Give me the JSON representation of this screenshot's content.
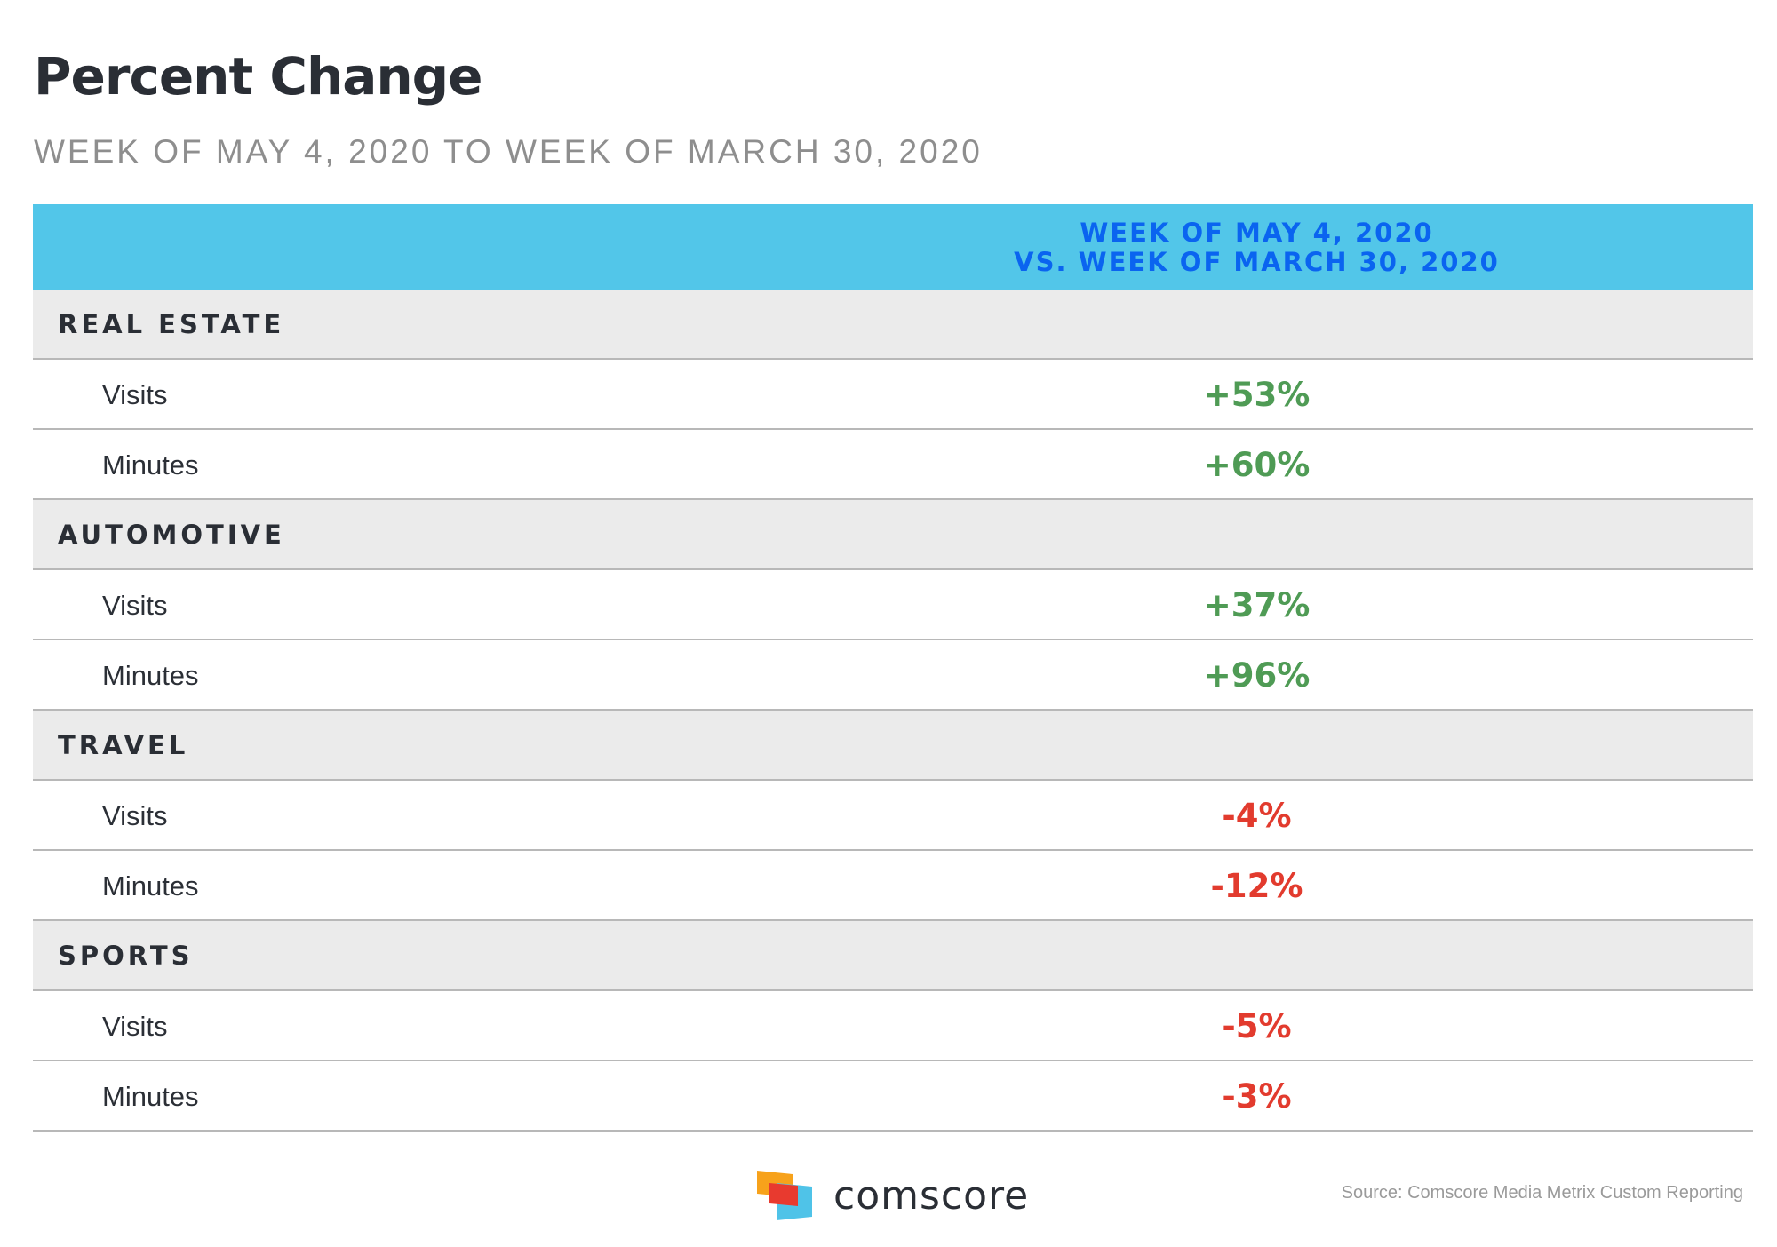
{
  "header": {
    "title": "Percent Change",
    "subtitle": "WEEK OF MAY 4, 2020 TO WEEK OF MARCH 30, 2020"
  },
  "chart_data": {
    "type": "table",
    "column_header": [
      "WEEK OF MAY 4, 2020",
      "VS. WEEK OF MARCH 30, 2020"
    ],
    "categories": [
      {
        "name": "REAL ESTATE",
        "rows": [
          {
            "label": "Visits",
            "value": "+53%"
          },
          {
            "label": "Minutes",
            "value": "+60%"
          }
        ]
      },
      {
        "name": "AUTOMOTIVE",
        "rows": [
          {
            "label": "Visits",
            "value": "+37%"
          },
          {
            "label": "Minutes",
            "value": "+96%"
          }
        ]
      },
      {
        "name": "TRAVEL",
        "rows": [
          {
            "label": "Visits",
            "value": "-4%"
          },
          {
            "label": "Minutes",
            "value": "-12%"
          }
        ]
      },
      {
        "name": "SPORTS",
        "rows": [
          {
            "label": "Visits",
            "value": "-5%"
          },
          {
            "label": "Minutes",
            "value": "-3%"
          }
        ]
      }
    ]
  },
  "colors": {
    "header_bg": "#52c6e9",
    "header_text": "#0a64f0",
    "positive": "#4f9b55",
    "negative": "#e23b2e",
    "category_bg": "#ebebeb"
  },
  "footer": {
    "logo_text": "comscore",
    "source": "Source: Comscore Media Metrix Custom Reporting"
  }
}
